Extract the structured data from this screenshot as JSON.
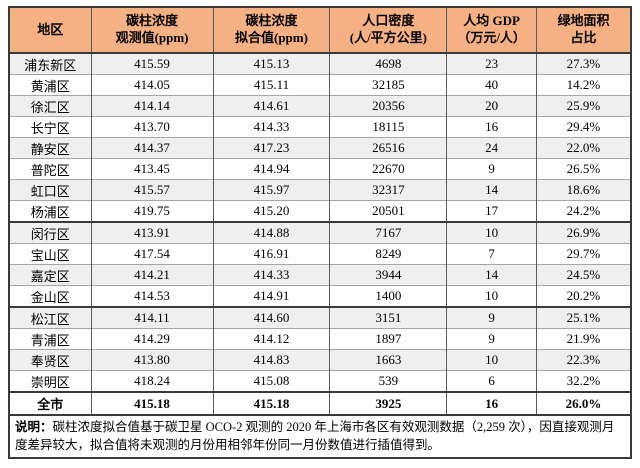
{
  "table": {
    "headers": [
      {
        "line1": "地区",
        "line2": ""
      },
      {
        "line1": "碳柱浓度",
        "line2": "观测值(ppm)"
      },
      {
        "line1": "碳柱浓度",
        "line2": "拟合值(ppm)"
      },
      {
        "line1": "人口密度",
        "line2": "(人/平方公里)"
      },
      {
        "line1": "人均 GDP",
        "line2": "（万元/人）"
      },
      {
        "line1": "绿地面积",
        "line2": "占比"
      }
    ],
    "rows": [
      [
        "浦东新区",
        "415.59",
        "415.13",
        "4698",
        "23",
        "27.3%"
      ],
      [
        "黄浦区",
        "414.05",
        "415.11",
        "32185",
        "40",
        "14.2%"
      ],
      [
        "徐汇区",
        "414.14",
        "414.61",
        "20356",
        "20",
        "25.9%"
      ],
      [
        "长宁区",
        "413.70",
        "414.33",
        "18115",
        "16",
        "29.4%"
      ],
      [
        "静安区",
        "414.37",
        "417.23",
        "26516",
        "24",
        "22.0%"
      ],
      [
        "普陀区",
        "413.45",
        "414.94",
        "22670",
        "9",
        "26.5%"
      ],
      [
        "虹口区",
        "415.57",
        "415.97",
        "32317",
        "14",
        "18.6%"
      ],
      [
        "杨浦区",
        "419.75",
        "415.20",
        "20501",
        "17",
        "24.2%"
      ],
      [
        "闵行区",
        "413.91",
        "414.88",
        "7167",
        "10",
        "26.9%"
      ],
      [
        "宝山区",
        "417.54",
        "416.91",
        "8249",
        "7",
        "29.7%"
      ],
      [
        "嘉定区",
        "414.21",
        "414.33",
        "3944",
        "14",
        "24.5%"
      ],
      [
        "金山区",
        "414.53",
        "414.91",
        "1400",
        "10",
        "20.2%"
      ],
      [
        "松江区",
        "414.11",
        "414.60",
        "3151",
        "9",
        "25.1%"
      ],
      [
        "青浦区",
        "414.29",
        "414.12",
        "1897",
        "9",
        "21.9%"
      ],
      [
        "奉贤区",
        "413.80",
        "414.83",
        "1663",
        "10",
        "22.3%"
      ],
      [
        "崇明区",
        "418.24",
        "415.08",
        "539",
        "6",
        "32.2%"
      ]
    ],
    "group_separator_before": [
      8,
      12
    ],
    "summary_row": [
      "全市",
      "415.18",
      "415.18",
      "3925",
      "16",
      "26.0%"
    ],
    "footnote_label": "说明：",
    "footnote_text": "碳柱浓度拟合值基于碳卫星 OCO-2 观测的 2020 年上海市各区有效观测数据（2,259 次），因直接观测月度差异较大，拟合值将未观测的月份用相邻年份同一月份数值进行插值得到。"
  },
  "colors": {
    "header_bg": "#F5B183",
    "row_alt_bg": "#EFEFEF",
    "border_dark": "#3A3A3A",
    "border_light": "#A6A6A6"
  }
}
